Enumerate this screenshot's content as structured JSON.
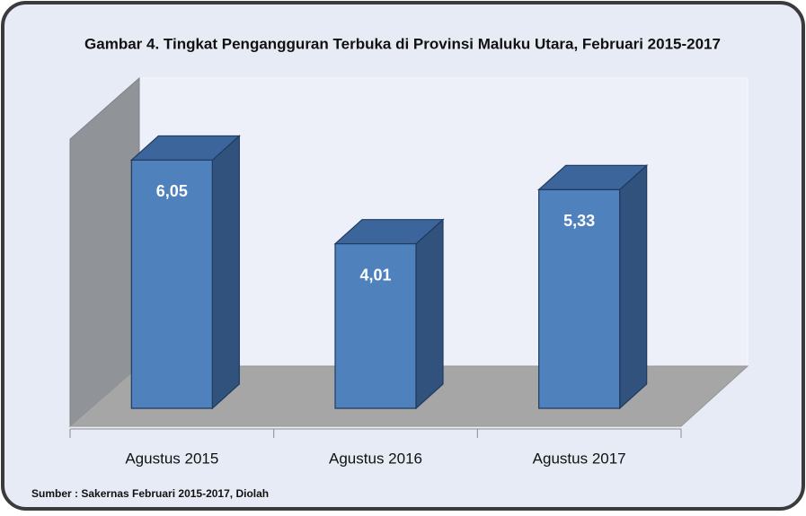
{
  "chart_data": {
    "type": "bar3d",
    "title": "Gambar 4. Tingkat Pengangguran Terbuka di Provinsi Maluku Utara, Februari 2015-2017",
    "categories": [
      "Agustus 2015",
      "Agustus 2016",
      "Agustus 2017"
    ],
    "values": [
      6.05,
      4.01,
      5.33
    ],
    "value_labels": [
      "6,05",
      "4,01",
      "5,33"
    ],
    "color": "#4f81bd",
    "ylim": [
      0,
      7
    ],
    "source": "Sumber : Sakernas Februari 2015-2017, Diolah"
  }
}
